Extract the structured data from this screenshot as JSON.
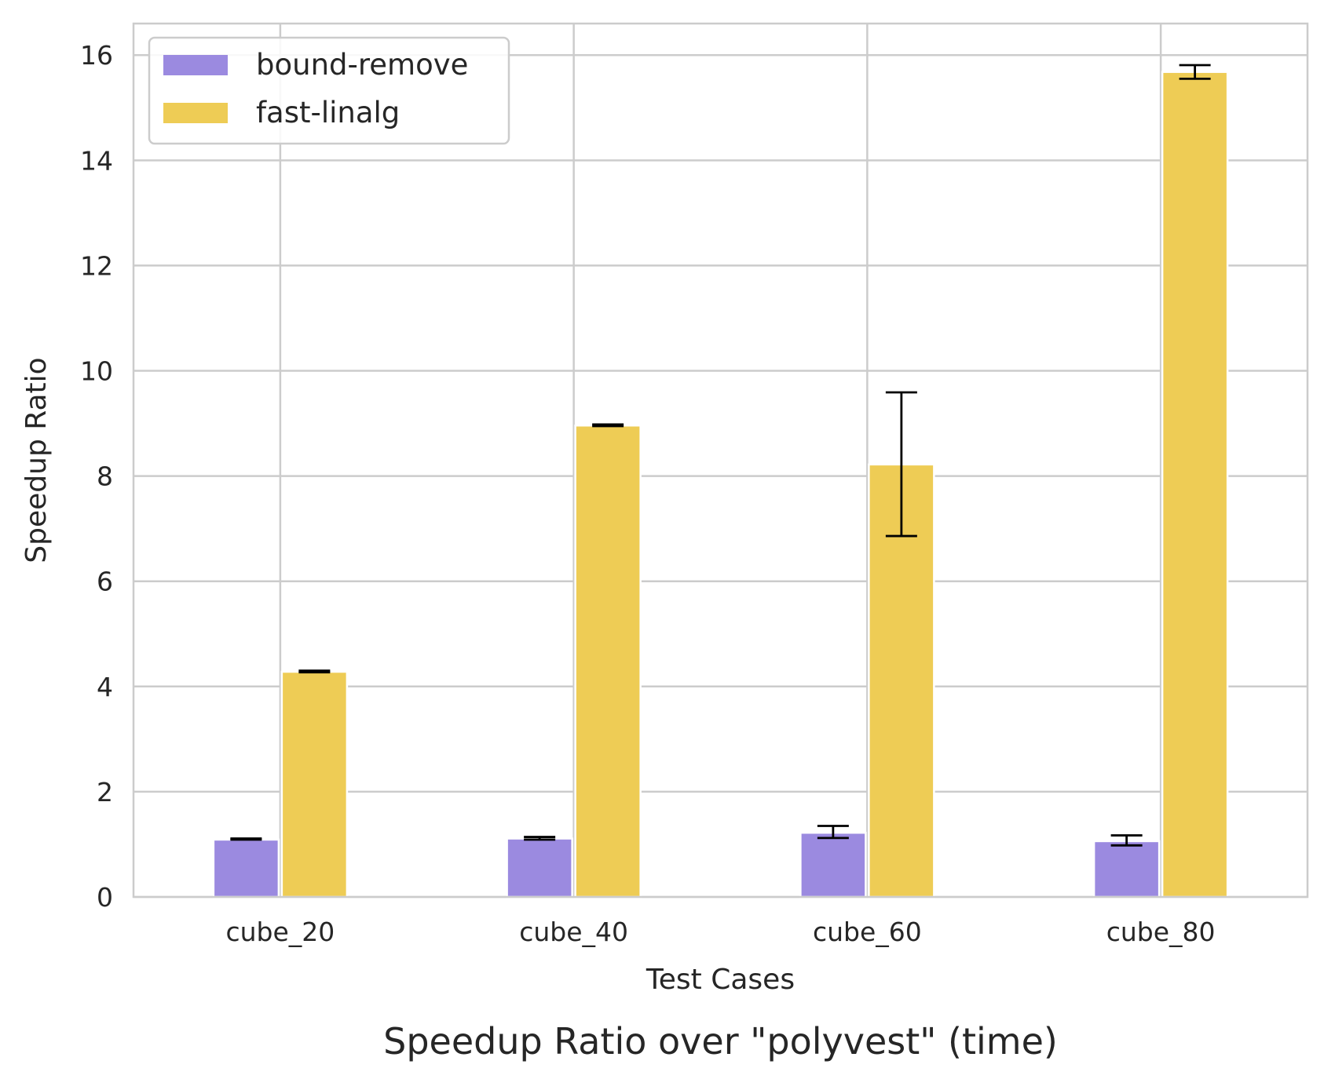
{
  "chart_data": {
    "type": "bar",
    "categories": [
      "cube_20",
      "cube_40",
      "cube_60",
      "cube_80"
    ],
    "series": [
      {
        "name": "bound-remove",
        "color": "#9b8ae0",
        "values": [
          1.09,
          1.11,
          1.22,
          1.06
        ],
        "err_low": [
          1.09,
          1.09,
          1.12,
          0.98
        ],
        "err_high": [
          1.11,
          1.14,
          1.35,
          1.17
        ]
      },
      {
        "name": "fast-linalg",
        "color": "#eecc55",
        "values": [
          4.28,
          8.96,
          8.22,
          15.68
        ],
        "err_low": [
          4.27,
          8.95,
          6.86,
          15.55
        ],
        "err_high": [
          4.3,
          8.98,
          9.59,
          15.81
        ]
      }
    ],
    "xlabel": "Test Cases",
    "ylabel": "Speedup Ratio",
    "ylim": [
      0,
      16.6
    ],
    "yticks": [
      0,
      2,
      4,
      6,
      8,
      10,
      12,
      14,
      16
    ],
    "grid": true,
    "legend": "upper-left"
  },
  "caption": "Speedup Ratio over \"polyvest\" (time)"
}
